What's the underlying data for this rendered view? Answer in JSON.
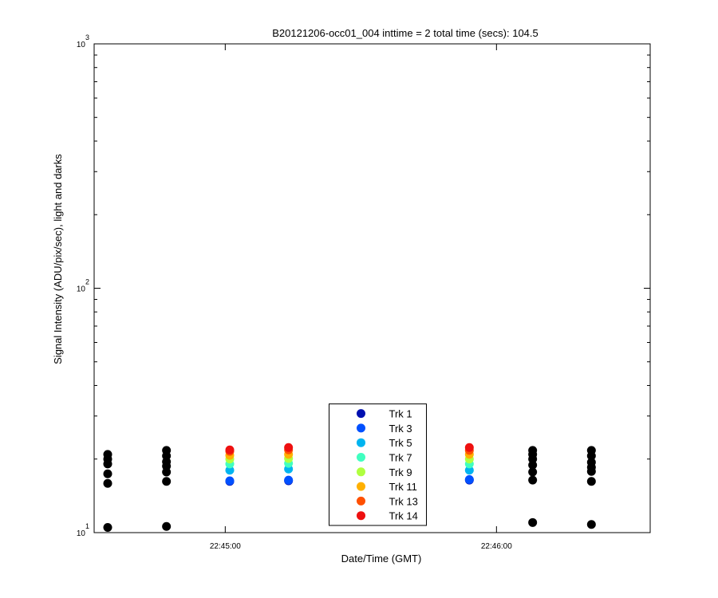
{
  "chart_data": {
    "type": "scatter",
    "title": "B20121206-occ01_004 inttime = 2 total time (secs): 104.5",
    "x_label": "Date/Time (GMT)",
    "y_label": "Signal Intensity (ADU/pix/sec), light and darks",
    "xlim": [
      "22:44:31",
      "22:46:34"
    ],
    "xticks": [
      "22:45:00",
      "22:46:00"
    ],
    "ylim": [
      10,
      1000
    ],
    "yticks": [
      {
        "value": 10,
        "label": "10^1"
      },
      {
        "value": 100,
        "label": "10^2"
      },
      {
        "value": 1000,
        "label": "10^3"
      }
    ],
    "log_y": true,
    "legend": "bottom-center",
    "dark_points": {
      "color": "#000000",
      "x": [
        "22:44:34",
        "22:44:34",
        "22:44:34",
        "22:44:34",
        "22:44:34",
        "22:44:34",
        "22:44:47",
        "22:44:47",
        "22:44:47",
        "22:44:47",
        "22:44:47",
        "22:44:47",
        "22:44:47",
        "22:46:08",
        "22:46:08",
        "22:46:08",
        "22:46:08",
        "22:46:08",
        "22:46:08",
        "22:46:08",
        "22:46:21",
        "22:46:21",
        "22:46:21",
        "22:46:21",
        "22:46:21",
        "22:46:21",
        "22:46:21"
      ],
      "values": [
        20.9,
        20.0,
        19.1,
        17.4,
        15.9,
        10.5,
        21.7,
        20.6,
        19.5,
        18.7,
        17.7,
        16.2,
        10.6,
        21.7,
        20.9,
        20.0,
        18.9,
        17.7,
        16.4,
        11.0,
        21.7,
        20.6,
        19.4,
        18.5,
        17.8,
        16.2,
        10.8
      ]
    },
    "series": [
      {
        "name": "Trk 1",
        "color": "#0010b0",
        "x": [
          "22:45:01",
          "22:45:14",
          "22:45:54"
        ],
        "values": [
          16.2,
          16.3,
          16.4
        ]
      },
      {
        "name": "Trk 3",
        "color": "#0050ff",
        "x": [
          "22:45:01",
          "22:45:14",
          "22:45:54"
        ],
        "values": [
          16.3,
          16.4,
          16.5
        ]
      },
      {
        "name": "Trk 5",
        "color": "#00b4f0",
        "x": [
          "22:45:01",
          "22:45:14",
          "22:45:54"
        ],
        "values": [
          18.0,
          18.2,
          18.0
        ]
      },
      {
        "name": "Trk 7",
        "color": "#40ffc0",
        "x": [
          "22:45:01",
          "22:45:14",
          "22:45:54"
        ],
        "values": [
          19.1,
          19.2,
          19.1
        ]
      },
      {
        "name": "Trk 9",
        "color": "#b0ff40",
        "x": [
          "22:45:01",
          "22:45:14",
          "22:45:54"
        ],
        "values": [
          20.0,
          20.1,
          20.0
        ]
      },
      {
        "name": "Trk 11",
        "color": "#ffb000",
        "x": [
          "22:45:01",
          "22:45:14",
          "22:45:54"
        ],
        "values": [
          20.7,
          20.9,
          20.9
        ]
      },
      {
        "name": "Trk 13",
        "color": "#ff5000",
        "x": [
          "22:45:01",
          "22:45:14",
          "22:45:54"
        ],
        "values": [
          21.5,
          21.8,
          21.7
        ]
      },
      {
        "name": "Trk 14",
        "color": "#ee1010",
        "x": [
          "22:45:01",
          "22:45:14",
          "22:45:54"
        ],
        "values": [
          21.8,
          22.3,
          22.3
        ]
      }
    ]
  }
}
